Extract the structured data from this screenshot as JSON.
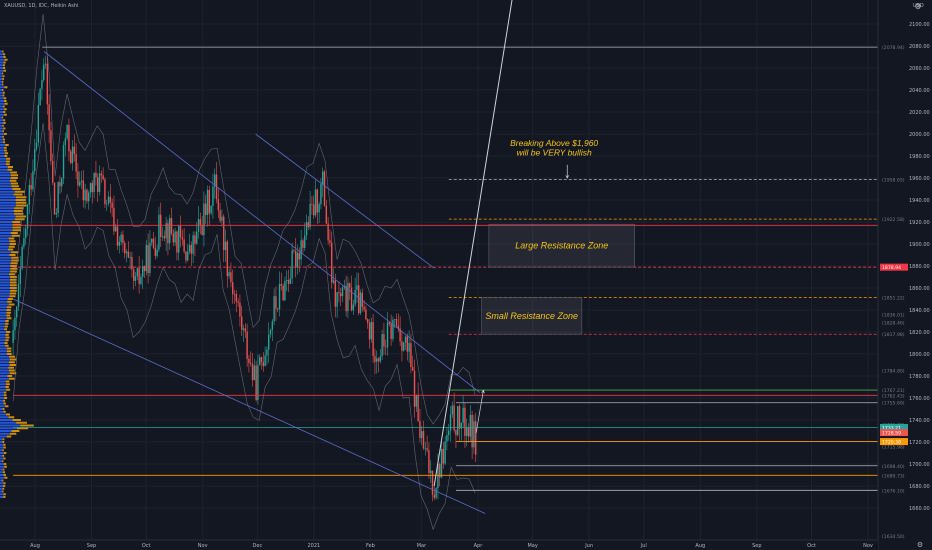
{
  "header": {
    "symbol": "XAUUSD, 1D, IDC, Heikin Ashi",
    "currency": "USD",
    "gear_icon": "gear-icon",
    "settings_icon": "settings-icon"
  },
  "colors": {
    "background": "#131722",
    "bull": "#26a69a",
    "bear": "#ef5350",
    "grid": "#1e222d",
    "annotation": "#f5c518",
    "channel": "#5b6dc9",
    "resistance_red": "#f23645",
    "green_level": "#4caf50",
    "orange_level": "#ff9800",
    "white_line": "#d1d4dc",
    "axis_text": "#b2b5be",
    "volume_profile_up": "#2962ff",
    "volume_profile_down": "#f0a30a"
  },
  "chart_data": {
    "type": "candlestick",
    "chart_style": "Heikin Ashi",
    "instrument": "XAUUSD",
    "timeframe": "1D",
    "source": "IDC",
    "ylim": [
      1640,
      2120
    ],
    "y_ticks": [
      1660,
      1680,
      1700,
      1720,
      1740,
      1760,
      1780,
      1800,
      1820,
      1840,
      1860,
      1880,
      1900,
      1920,
      1940,
      1960,
      1980,
      2000,
      2020,
      2040,
      2060,
      2080,
      2100
    ],
    "x_ticks": [
      "Aug",
      "Sep",
      "Oct",
      "Nov",
      "Dec",
      "2021",
      "Feb",
      "Mar",
      "Apr",
      "May",
      "Jun",
      "Jul",
      "Aug",
      "Sep",
      "Oct",
      "Nov"
    ],
    "x_range_months": [
      "Jul 2020",
      "Nov 2021"
    ],
    "price_path": [
      {
        "date": "2020-07-20",
        "price": 1810
      },
      {
        "date": "2020-08-06",
        "price": 2070
      },
      {
        "date": "2020-08-12",
        "price": 1920
      },
      {
        "date": "2020-08-18",
        "price": 2000
      },
      {
        "date": "2020-08-28",
        "price": 1940
      },
      {
        "date": "2020-09-05",
        "price": 1960
      },
      {
        "date": "2020-09-25",
        "price": 1860
      },
      {
        "date": "2020-10-10",
        "price": 1920
      },
      {
        "date": "2020-10-25",
        "price": 1890
      },
      {
        "date": "2020-11-08",
        "price": 1955
      },
      {
        "date": "2020-11-15",
        "price": 1880
      },
      {
        "date": "2020-11-30",
        "price": 1770
      },
      {
        "date": "2020-12-10",
        "price": 1840
      },
      {
        "date": "2020-12-20",
        "price": 1880
      },
      {
        "date": "2021-01-06",
        "price": 1955
      },
      {
        "date": "2021-01-12",
        "price": 1850
      },
      {
        "date": "2021-01-25",
        "price": 1850
      },
      {
        "date": "2021-02-05",
        "price": 1800
      },
      {
        "date": "2021-02-15",
        "price": 1830
      },
      {
        "date": "2021-02-22",
        "price": 1800
      },
      {
        "date": "2021-03-01",
        "price": 1720
      },
      {
        "date": "2021-03-08",
        "price": 1680
      },
      {
        "date": "2021-03-18",
        "price": 1740
      },
      {
        "date": "2021-03-26",
        "price": 1735
      },
      {
        "date": "2021-03-31",
        "price": 1722
      }
    ],
    "price_labels": [
      {
        "label": "2078.94",
        "value": 2078.94
      },
      {
        "label": "1958.65",
        "value": 1958.65
      },
      {
        "label": "1922.58",
        "value": 1922.58
      },
      {
        "label": "1878.94",
        "value": 1878.94,
        "highlight": "#f23645"
      },
      {
        "label": "1851.22",
        "value": 1851.22
      },
      {
        "label": "1836.01",
        "value": 1836.01
      },
      {
        "label": "1828.46",
        "value": 1828.46
      },
      {
        "label": "1817.98",
        "value": 1817.98
      },
      {
        "label": "1784.80",
        "value": 1784.8
      },
      {
        "label": "1767.21",
        "value": 1767.21
      },
      {
        "label": "1762.43",
        "value": 1762.43
      },
      {
        "label": "1755.69",
        "value": 1755.69
      },
      {
        "label": "1735.80",
        "value": 1735.8
      },
      {
        "label": "1733.21",
        "value": 1733.21,
        "highlight": "#26a69a"
      },
      {
        "label": "1730.59",
        "value": 1730.59
      },
      {
        "label": "1728.59",
        "value": 1728.59,
        "highlight": "#ef5350"
      },
      {
        "label": "1720.38",
        "value": 1720.38,
        "highlight": "#ff9800"
      },
      {
        "label": "1715.98",
        "value": 1715.98
      },
      {
        "label": "1698.40",
        "value": 1698.4
      },
      {
        "label": "1689.73",
        "value": 1689.73
      },
      {
        "label": "1676.10",
        "value": 1676.1
      },
      {
        "label": "1634.50",
        "value": 1634.5
      }
    ],
    "horizontal_levels": [
      {
        "value": 2078.94,
        "color": "#9598a1",
        "style": "solid",
        "from": "2020-08-05"
      },
      {
        "value": 1958.65,
        "color": "#b2b5be",
        "style": "dashed",
        "from": "2021-03-16"
      },
      {
        "value": 1922.58,
        "color": "#ff9800",
        "style": "dashed",
        "from": "2021-03-16"
      },
      {
        "value": 1917,
        "color": "#f23645",
        "style": "solid",
        "from": "2020-07-20"
      },
      {
        "value": 1878.94,
        "color": "#f23645",
        "style": "dashed",
        "from": "2020-07-20"
      },
      {
        "value": 1851.22,
        "color": "#ff9800",
        "style": "dashed",
        "from": "2021-03-16"
      },
      {
        "value": 1817.98,
        "color": "#f23645",
        "style": "dashed",
        "from": "2021-03-16"
      },
      {
        "value": 1767.21,
        "color": "#4caf50",
        "style": "solid",
        "from": "2021-03-16"
      },
      {
        "value": 1762.43,
        "color": "#f23645",
        "style": "solid",
        "from": "2020-07-20"
      },
      {
        "value": 1755.69,
        "color": "#b2b5be",
        "style": "solid",
        "from": "2021-03-20"
      },
      {
        "value": 1733.21,
        "color": "#26a69a",
        "style": "solid",
        "from": "2020-07-20"
      },
      {
        "value": 1720.38,
        "color": "#ff9800",
        "style": "solid",
        "from": "2021-03-20"
      },
      {
        "value": 1698.4,
        "color": "#b2b5be",
        "style": "solid",
        "from": "2021-03-20"
      },
      {
        "value": 1689.73,
        "color": "#ff9800",
        "style": "solid",
        "from": "2020-07-20"
      },
      {
        "value": 1676.1,
        "color": "#b2b5be",
        "style": "solid",
        "from": "2021-03-20"
      }
    ],
    "trend_lines": [
      {
        "name": "upper channel",
        "from": {
          "date": "2020-08-06",
          "price": 2075
        },
        "to": {
          "date": "2021-04-02",
          "price": 1765
        },
        "color": "#5b6dc9"
      },
      {
        "name": "lower channel",
        "from": {
          "date": "2020-07-20",
          "price": 1850
        },
        "to": {
          "date": "2021-04-05",
          "price": 1655
        },
        "color": "#5b6dc9"
      },
      {
        "name": "mid channel",
        "from": {
          "date": "2020-11-30",
          "price": 2000
        },
        "to": {
          "date": "2021-03-08",
          "price": 1878
        },
        "color": "#5b6dc9"
      },
      {
        "name": "steep support",
        "from": {
          "date": "2021-03-08",
          "price": 1680
        },
        "to": {
          "date": "2021-04-20",
          "price": 2125
        },
        "color": "#d1d4dc"
      }
    ],
    "zones": [
      {
        "label": "Large Resistance Zone",
        "from_date": "2021-04-07",
        "to_date": "2021-06-26",
        "low": 1878.94,
        "high": 1918
      },
      {
        "label": "Small Resistance Zone",
        "from_date": "2021-04-03",
        "to_date": "2021-05-28",
        "low": 1817.98,
        "high": 1851.22
      }
    ],
    "annotations": [
      {
        "text": "Breaking Above $1,960\nwill be VERY bullish",
        "line1": "Breaking Above $1,960",
        "line2": "will be VERY bullish",
        "date": "2021-05-15",
        "price": 1980
      }
    ],
    "arrows": [
      {
        "from": {
          "date": "2021-03-31",
          "price": 1728
        },
        "to": {
          "date": "2021-04-04",
          "price": 1767
        }
      },
      {
        "from": {
          "date": "2021-05-20",
          "price": 1972
        },
        "to": {
          "date": "2021-05-20",
          "price": 1960
        }
      }
    ],
    "grid": true,
    "volume_profile": "left"
  },
  "axis": {
    "title": "",
    "price_label_format": "(value)"
  }
}
